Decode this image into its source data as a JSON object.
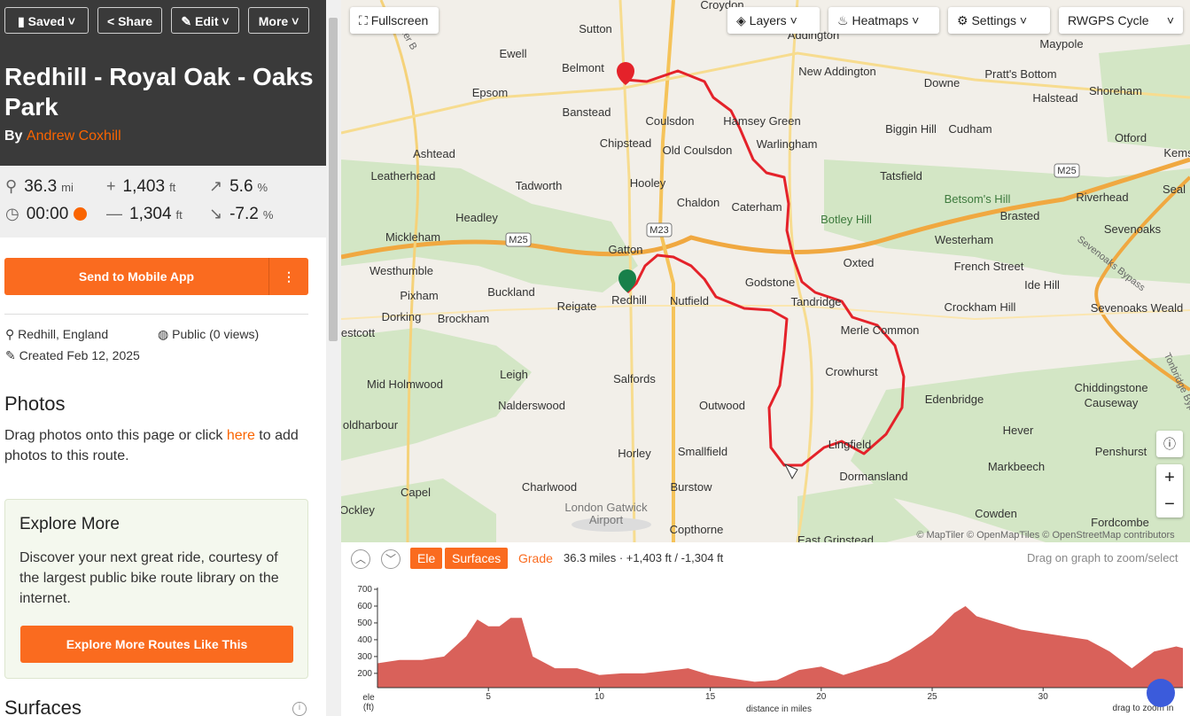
{
  "toolbar": {
    "buttons": [
      "Saved",
      "Share",
      "Edit",
      "More"
    ]
  },
  "route": {
    "title": "Redhill - Royal Oak - Oaks Park",
    "by": "By",
    "author": "Andrew Coxhill"
  },
  "stats": {
    "distance": "36.3",
    "distance_unit": "mi",
    "gain": "1,403",
    "gain_unit": "ft",
    "max_grade": "5.6",
    "max_grade_unit": "%",
    "time": "00:00",
    "loss": "1,304",
    "loss_unit": "ft",
    "min_grade": "-7.2",
    "min_grade_unit": "%"
  },
  "send_button": "Send to Mobile App",
  "meta": {
    "location": "Redhill, England",
    "visibility": "Public (0 views)",
    "created": "Created Feb 12, 2025"
  },
  "photos": {
    "heading": "Photos",
    "text_before": "Drag photos onto this page or click",
    "link": "here",
    "text_after": "to add photos to this route."
  },
  "explore": {
    "heading": "Explore More",
    "text": "Discover your next great ride, courtesy of the largest public bike route library on the internet.",
    "button": "Explore More Routes Like This"
  },
  "surfaces_heading": "Surfaces",
  "map": {
    "controls": {
      "fullscreen": "Fullscreen",
      "layers": "Layers",
      "heatmaps": "Heatmaps",
      "settings": "Settings",
      "style": "RWGPS Cycle",
      "zoom_in": "+",
      "zoom_out": "−"
    },
    "places": [
      "Croydon",
      "Sutton",
      "Ewell",
      "Belmont",
      "Addington",
      "New Addington",
      "Maypole",
      "Pratt's Bottom",
      "Downe",
      "Halstead",
      "Shoreham",
      "Epsom",
      "Banstead",
      "Coulsdon",
      "Hamsey Green",
      "Biggin Hill",
      "Cudham",
      "Otford",
      "Chipstead",
      "Old Coulsdon",
      "Warlingham",
      "Ashtead",
      "Kems",
      "Leatherhead",
      "Tatsfield",
      "Riverhead",
      "Seal",
      "Tadworth",
      "Hooley",
      "Betsom's Hill",
      "Chaldon",
      "Caterham",
      "Botley Hill",
      "Brasted",
      "Headley",
      "Mickleham",
      "Westerham",
      "Sevenoaks",
      "Gatton",
      "Oxted",
      "French Street",
      "Westhumble",
      "Buckland",
      "Godstone",
      "Ide Hill",
      "Pixham",
      "Reigate",
      "Redhill",
      "Nutfield",
      "Tandridge",
      "Crockham Hill",
      "Sevenoaks Weald",
      "Dorking",
      "Brockham",
      "estcott",
      "Merle Common",
      "Leigh",
      "Salfords",
      "Crowhurst",
      "Chiddingstone",
      "Causeway",
      "Mid Holmwood",
      "Edenbridge",
      "Nalderswood",
      "Outwood",
      "oldharbour",
      "Hever",
      "Lingfield",
      "Horley",
      "Smallfield",
      "Penshurst",
      "Markbeech",
      "Dormansland",
      "Capel",
      "Charlwood",
      "Burstow",
      "London Gatwick",
      "Airport",
      "Ockley",
      "Copthorne",
      "Cowden",
      "Fordcombe",
      "East Grinstead"
    ],
    "roads": [
      "M25",
      "M23",
      "M25",
      "Sevenoaks Bypass",
      "Tonbridge Bypass",
      "Esher B"
    ],
    "attribution": "© MapTiler © OpenMapTiles © OpenStreetMap contributors"
  },
  "elevation": {
    "tabs": [
      "Ele",
      "Surfaces",
      "Grade"
    ],
    "summary": "36.3 miles · +1,403 ft / -1,304 ft",
    "hint": "Drag on graph to zoom/select"
  },
  "chart_data": {
    "type": "area",
    "xlabel": "distance in miles",
    "ylabel": "ele",
    "yunit": "(ft)",
    "note": "drag to zoom in",
    "color": "#d9615a",
    "x": [
      0,
      1,
      2,
      3,
      4,
      4.5,
      5,
      5.5,
      6,
      6.5,
      7,
      8,
      9,
      10,
      11,
      12,
      13,
      14,
      15,
      16,
      17,
      18,
      19,
      20,
      21,
      22,
      23,
      24,
      25,
      26,
      26.5,
      27,
      28,
      29,
      30,
      31,
      32,
      33,
      34,
      35,
      36,
      36.3
    ],
    "values": [
      260,
      280,
      280,
      300,
      420,
      520,
      480,
      480,
      530,
      530,
      300,
      230,
      230,
      190,
      200,
      200,
      215,
      230,
      190,
      170,
      150,
      160,
      220,
      240,
      190,
      230,
      270,
      340,
      430,
      560,
      600,
      540,
      500,
      460,
      440,
      420,
      400,
      330,
      230,
      330,
      360,
      350
    ],
    "xlim": [
      0,
      36.3
    ],
    "ylim": [
      115,
      700
    ],
    "xticks": [
      5,
      10,
      15,
      20,
      25,
      30
    ],
    "yticks": [
      200,
      300,
      400,
      500,
      600,
      700
    ]
  }
}
